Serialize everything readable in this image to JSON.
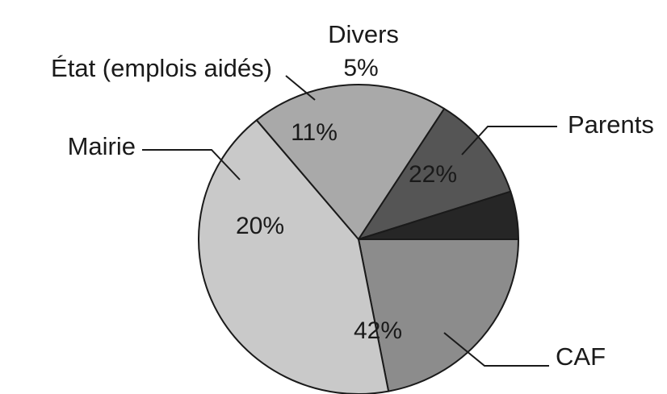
{
  "chart_data": {
    "type": "pie",
    "categories": [
      "Parents",
      "CAF",
      "Mairie",
      "État (emplois aidés)",
      "Divers"
    ],
    "values": [
      22,
      42,
      20,
      11,
      5
    ],
    "value_labels": [
      "22%",
      "42%",
      "20%",
      "11%",
      "5%"
    ],
    "colors": [
      "#8c8c8c",
      "#c9c9c9",
      "#a9a9a9",
      "#555555",
      "#262626"
    ],
    "start_angle_deg": 0,
    "direction": "clockwise",
    "legend": "none"
  }
}
